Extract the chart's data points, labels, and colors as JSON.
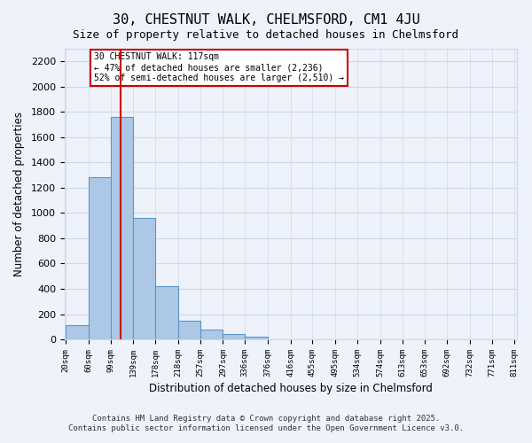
{
  "title_line1": "30, CHESTNUT WALK, CHELMSFORD, CM1 4JU",
  "title_line2": "Size of property relative to detached houses in Chelmsford",
  "xlabel": "Distribution of detached houses by size in Chelmsford",
  "ylabel": "Number of detached properties",
  "bin_labels": [
    "20sqm",
    "60sqm",
    "99sqm",
    "139sqm",
    "178sqm",
    "218sqm",
    "257sqm",
    "297sqm",
    "336sqm",
    "376sqm",
    "416sqm",
    "455sqm",
    "495sqm",
    "534sqm",
    "574sqm",
    "613sqm",
    "653sqm",
    "692sqm",
    "732sqm",
    "771sqm",
    "811sqm"
  ],
  "bin_edges": [
    20,
    60,
    99,
    139,
    178,
    218,
    257,
    297,
    336,
    376,
    416,
    455,
    495,
    534,
    574,
    613,
    653,
    692,
    732,
    771,
    811
  ],
  "bar_heights": [
    110,
    1280,
    1760,
    960,
    420,
    150,
    75,
    40,
    20,
    0,
    0,
    0,
    0,
    0,
    0,
    0,
    0,
    0,
    0,
    0
  ],
  "bar_color": "#adc8e6",
  "bar_edge_color": "#5a96c8",
  "bar_edge_width": 0.8,
  "grid_color": "#d0d8e8",
  "bg_color": "#eef2fa",
  "red_line_x": 117,
  "red_line_color": "#cc0000",
  "annotation_text": "30 CHESTNUT WALK: 117sqm\n← 47% of detached houses are smaller (2,236)\n52% of semi-detached houses are larger (2,510) →",
  "annotation_box_color": "#ffffff",
  "annotation_box_edge": "#cc0000",
  "ylim": [
    0,
    2300
  ],
  "yticks": [
    0,
    200,
    400,
    600,
    800,
    1000,
    1200,
    1400,
    1600,
    1800,
    2000,
    2200
  ],
  "copyright_line1": "Contains HM Land Registry data © Crown copyright and database right 2025.",
  "copyright_line2": "Contains public sector information licensed under the Open Government Licence v3.0.",
  "figsize": [
    6.0,
    5.0
  ],
  "dpi": 100
}
